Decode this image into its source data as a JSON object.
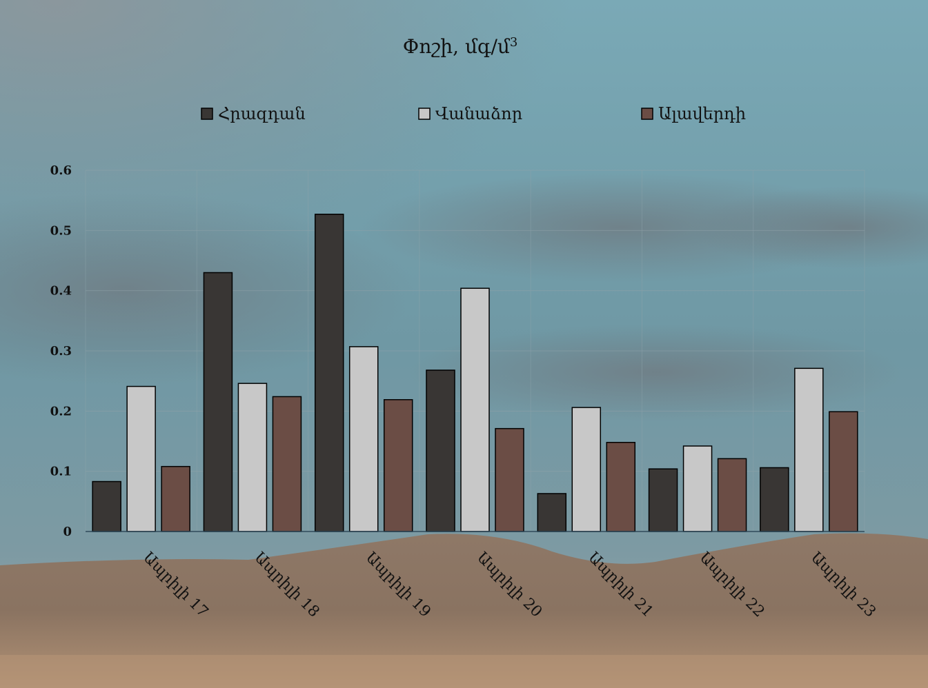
{
  "chart_data": {
    "type": "bar",
    "title": "Փոշի, մգ/մ",
    "title_superscript": "3",
    "categories": [
      "Ապրիլի 17",
      "Ապրիլի 18",
      "Ապրիլի 19",
      "Ապրիլի 20",
      "Ապրիլի 21",
      "Ապրիլի 22",
      "Ապրիլի 23"
    ],
    "series": [
      {
        "name": "Հրազդան",
        "color": "#393634",
        "values": [
          0.083,
          0.43,
          0.527,
          0.268,
          0.063,
          0.104,
          0.106
        ]
      },
      {
        "name": "Վանաձոր",
        "color": "#c8c8c8",
        "values": [
          0.241,
          0.246,
          0.307,
          0.404,
          0.206,
          0.142,
          0.271
        ]
      },
      {
        "name": "Ալավերդի",
        "color": "#6b4d45",
        "values": [
          0.108,
          0.224,
          0.219,
          0.171,
          0.148,
          0.121,
          0.199
        ]
      }
    ],
    "ylim": [
      0,
      0.6
    ],
    "yticks": [
      "0",
      "0.1",
      "0.2",
      "0.3",
      "0.4",
      "0.5",
      "0.6"
    ],
    "grid": true,
    "legend_position": "top"
  }
}
